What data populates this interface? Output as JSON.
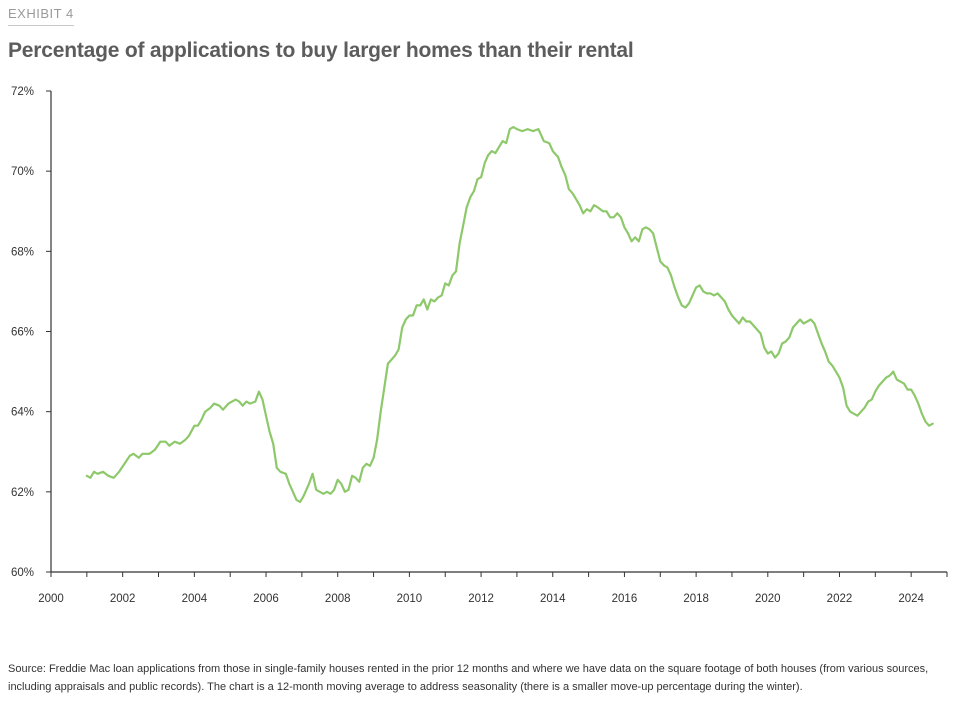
{
  "exhibit": "EXHIBIT 4",
  "title": "Percentage of applications to buy larger homes than their rental",
  "source": "Source: Freddie Mac loan applications from those in single-family houses rented in the prior 12 months and where we have data on the square footage of both houses (from various sources, including appraisals and public records). The chart is a 12-month moving average to address seasonality (there is a smaller move-up percentage during the winter).",
  "colors": {
    "line": "#8dc86a",
    "axis": "#333333"
  },
  "chart_data": {
    "type": "line",
    "title": "Percentage of applications to buy larger homes than their rental",
    "xlabel": "",
    "ylabel": "",
    "xlim": [
      2000,
      2025
    ],
    "ylim": [
      60,
      72
    ],
    "grid": false,
    "x_ticks": [
      "2000",
      "2002",
      "2004",
      "2006",
      "2008",
      "2010",
      "2012",
      "2014",
      "2016",
      "2018",
      "2020",
      "2022",
      "2024"
    ],
    "y_ticks": [
      "60%",
      "62%",
      "64%",
      "66%",
      "68%",
      "70%",
      "72%"
    ],
    "series": [
      {
        "points": [
          [
            2001.0,
            62.4
          ],
          [
            2001.1,
            62.35
          ],
          [
            2001.2,
            62.5
          ],
          [
            2001.3,
            62.45
          ],
          [
            2001.45,
            62.5
          ],
          [
            2001.6,
            62.4
          ],
          [
            2001.75,
            62.35
          ],
          [
            2001.9,
            62.5
          ],
          [
            2002.05,
            62.7
          ],
          [
            2002.2,
            62.9
          ],
          [
            2002.3,
            62.95
          ],
          [
            2002.45,
            62.85
          ],
          [
            2002.55,
            62.95
          ],
          [
            2002.75,
            62.95
          ],
          [
            2002.9,
            63.05
          ],
          [
            2003.05,
            63.25
          ],
          [
            2003.2,
            63.25
          ],
          [
            2003.3,
            63.15
          ],
          [
            2003.45,
            63.25
          ],
          [
            2003.6,
            63.2
          ],
          [
            2003.75,
            63.3
          ],
          [
            2003.85,
            63.4
          ],
          [
            2004.0,
            63.65
          ],
          [
            2004.1,
            63.65
          ],
          [
            2004.2,
            63.8
          ],
          [
            2004.3,
            64.0
          ],
          [
            2004.45,
            64.1
          ],
          [
            2004.55,
            64.2
          ],
          [
            2004.7,
            64.15
          ],
          [
            2004.8,
            64.05
          ],
          [
            2004.95,
            64.2
          ],
          [
            2005.05,
            64.25
          ],
          [
            2005.15,
            64.3
          ],
          [
            2005.25,
            64.25
          ],
          [
            2005.35,
            64.15
          ],
          [
            2005.45,
            64.25
          ],
          [
            2005.55,
            64.2
          ],
          [
            2005.7,
            64.25
          ],
          [
            2005.8,
            64.5
          ],
          [
            2005.9,
            64.3
          ],
          [
            2006.0,
            63.9
          ],
          [
            2006.1,
            63.5
          ],
          [
            2006.2,
            63.2
          ],
          [
            2006.3,
            62.6
          ],
          [
            2006.4,
            62.5
          ],
          [
            2006.55,
            62.45
          ],
          [
            2006.65,
            62.2
          ],
          [
            2006.75,
            62.0
          ],
          [
            2006.85,
            61.8
          ],
          [
            2006.95,
            61.75
          ],
          [
            2007.05,
            61.9
          ],
          [
            2007.2,
            62.2
          ],
          [
            2007.3,
            62.45
          ],
          [
            2007.4,
            62.05
          ],
          [
            2007.5,
            62.0
          ],
          [
            2007.6,
            61.95
          ],
          [
            2007.7,
            62.0
          ],
          [
            2007.8,
            61.95
          ],
          [
            2007.9,
            62.05
          ],
          [
            2008.0,
            62.3
          ],
          [
            2008.1,
            62.2
          ],
          [
            2008.2,
            62.0
          ],
          [
            2008.3,
            62.05
          ],
          [
            2008.4,
            62.4
          ],
          [
            2008.5,
            62.35
          ],
          [
            2008.6,
            62.25
          ],
          [
            2008.7,
            62.6
          ],
          [
            2008.8,
            62.7
          ],
          [
            2008.9,
            62.65
          ],
          [
            2009.0,
            62.85
          ],
          [
            2009.1,
            63.3
          ],
          [
            2009.2,
            64.0
          ],
          [
            2009.3,
            64.6
          ],
          [
            2009.4,
            65.2
          ],
          [
            2009.5,
            65.3
          ],
          [
            2009.6,
            65.4
          ],
          [
            2009.7,
            65.55
          ],
          [
            2009.8,
            66.1
          ],
          [
            2009.9,
            66.3
          ],
          [
            2010.0,
            66.4
          ],
          [
            2010.1,
            66.4
          ],
          [
            2010.2,
            66.65
          ],
          [
            2010.3,
            66.65
          ],
          [
            2010.4,
            66.8
          ],
          [
            2010.5,
            66.55
          ],
          [
            2010.6,
            66.8
          ],
          [
            2010.7,
            66.75
          ],
          [
            2010.8,
            66.85
          ],
          [
            2010.9,
            66.9
          ],
          [
            2011.0,
            67.2
          ],
          [
            2011.1,
            67.15
          ],
          [
            2011.2,
            67.4
          ],
          [
            2011.3,
            67.5
          ],
          [
            2011.4,
            68.2
          ],
          [
            2011.5,
            68.65
          ],
          [
            2011.6,
            69.1
          ],
          [
            2011.7,
            69.35
          ],
          [
            2011.8,
            69.5
          ],
          [
            2011.9,
            69.8
          ],
          [
            2012.0,
            69.85
          ],
          [
            2012.1,
            70.2
          ],
          [
            2012.2,
            70.4
          ],
          [
            2012.3,
            70.5
          ],
          [
            2012.4,
            70.45
          ],
          [
            2012.5,
            70.6
          ],
          [
            2012.6,
            70.75
          ],
          [
            2012.7,
            70.7
          ],
          [
            2012.8,
            71.05
          ],
          [
            2012.9,
            71.1
          ],
          [
            2013.0,
            71.05
          ],
          [
            2013.15,
            71.0
          ],
          [
            2013.3,
            71.05
          ],
          [
            2013.45,
            71.0
          ],
          [
            2013.6,
            71.05
          ],
          [
            2013.75,
            70.75
          ],
          [
            2013.9,
            70.7
          ],
          [
            2014.0,
            70.5
          ],
          [
            2014.15,
            70.35
          ],
          [
            2014.25,
            70.1
          ],
          [
            2014.35,
            69.9
          ],
          [
            2014.45,
            69.55
          ],
          [
            2014.55,
            69.45
          ],
          [
            2014.65,
            69.3
          ],
          [
            2014.75,
            69.15
          ],
          [
            2014.85,
            68.95
          ],
          [
            2014.95,
            69.05
          ],
          [
            2015.05,
            69.0
          ],
          [
            2015.15,
            69.15
          ],
          [
            2015.25,
            69.1
          ],
          [
            2015.4,
            69.0
          ],
          [
            2015.5,
            69.0
          ],
          [
            2015.6,
            68.85
          ],
          [
            2015.7,
            68.85
          ],
          [
            2015.8,
            68.95
          ],
          [
            2015.9,
            68.85
          ],
          [
            2016.0,
            68.6
          ],
          [
            2016.1,
            68.45
          ],
          [
            2016.2,
            68.25
          ],
          [
            2016.3,
            68.35
          ],
          [
            2016.4,
            68.25
          ],
          [
            2016.5,
            68.55
          ],
          [
            2016.6,
            68.6
          ],
          [
            2016.7,
            68.55
          ],
          [
            2016.8,
            68.45
          ],
          [
            2016.9,
            68.1
          ],
          [
            2017.0,
            67.75
          ],
          [
            2017.1,
            67.65
          ],
          [
            2017.2,
            67.6
          ],
          [
            2017.3,
            67.4
          ],
          [
            2017.4,
            67.1
          ],
          [
            2017.5,
            66.85
          ],
          [
            2017.6,
            66.65
          ],
          [
            2017.7,
            66.6
          ],
          [
            2017.8,
            66.7
          ],
          [
            2017.9,
            66.9
          ],
          [
            2018.0,
            67.1
          ],
          [
            2018.1,
            67.15
          ],
          [
            2018.2,
            67.0
          ],
          [
            2018.3,
            66.95
          ],
          [
            2018.4,
            66.95
          ],
          [
            2018.5,
            66.9
          ],
          [
            2018.6,
            66.95
          ],
          [
            2018.7,
            66.85
          ],
          [
            2018.8,
            66.75
          ],
          [
            2018.9,
            66.55
          ],
          [
            2019.0,
            66.4
          ],
          [
            2019.1,
            66.3
          ],
          [
            2019.2,
            66.2
          ],
          [
            2019.3,
            66.35
          ],
          [
            2019.4,
            66.25
          ],
          [
            2019.5,
            66.25
          ],
          [
            2019.6,
            66.15
          ],
          [
            2019.7,
            66.05
          ],
          [
            2019.8,
            65.95
          ],
          [
            2019.9,
            65.6
          ],
          [
            2020.0,
            65.45
          ],
          [
            2020.1,
            65.5
          ],
          [
            2020.2,
            65.35
          ],
          [
            2020.3,
            65.45
          ],
          [
            2020.4,
            65.7
          ],
          [
            2020.5,
            65.75
          ],
          [
            2020.6,
            65.85
          ],
          [
            2020.7,
            66.1
          ],
          [
            2020.8,
            66.2
          ],
          [
            2020.9,
            66.3
          ],
          [
            2021.0,
            66.2
          ],
          [
            2021.1,
            66.25
          ],
          [
            2021.2,
            66.3
          ],
          [
            2021.3,
            66.2
          ],
          [
            2021.4,
            65.95
          ],
          [
            2021.5,
            65.7
          ],
          [
            2021.6,
            65.5
          ],
          [
            2021.7,
            65.25
          ],
          [
            2021.8,
            65.15
          ],
          [
            2021.9,
            65.0
          ],
          [
            2022.0,
            64.85
          ],
          [
            2022.1,
            64.6
          ],
          [
            2022.2,
            64.15
          ],
          [
            2022.3,
            64.0
          ],
          [
            2022.4,
            63.95
          ],
          [
            2022.5,
            63.9
          ],
          [
            2022.6,
            64.0
          ],
          [
            2022.7,
            64.1
          ],
          [
            2022.8,
            64.25
          ],
          [
            2022.9,
            64.3
          ],
          [
            2023.0,
            64.5
          ],
          [
            2023.1,
            64.65
          ],
          [
            2023.2,
            64.75
          ],
          [
            2023.3,
            64.85
          ],
          [
            2023.4,
            64.9
          ],
          [
            2023.5,
            65.0
          ],
          [
            2023.6,
            64.8
          ],
          [
            2023.7,
            64.75
          ],
          [
            2023.8,
            64.7
          ],
          [
            2023.9,
            64.55
          ],
          [
            2024.0,
            64.55
          ],
          [
            2024.1,
            64.4
          ],
          [
            2024.2,
            64.2
          ],
          [
            2024.3,
            63.95
          ],
          [
            2024.4,
            63.75
          ],
          [
            2024.5,
            63.65
          ],
          [
            2024.6,
            63.7
          ]
        ]
      }
    ]
  }
}
